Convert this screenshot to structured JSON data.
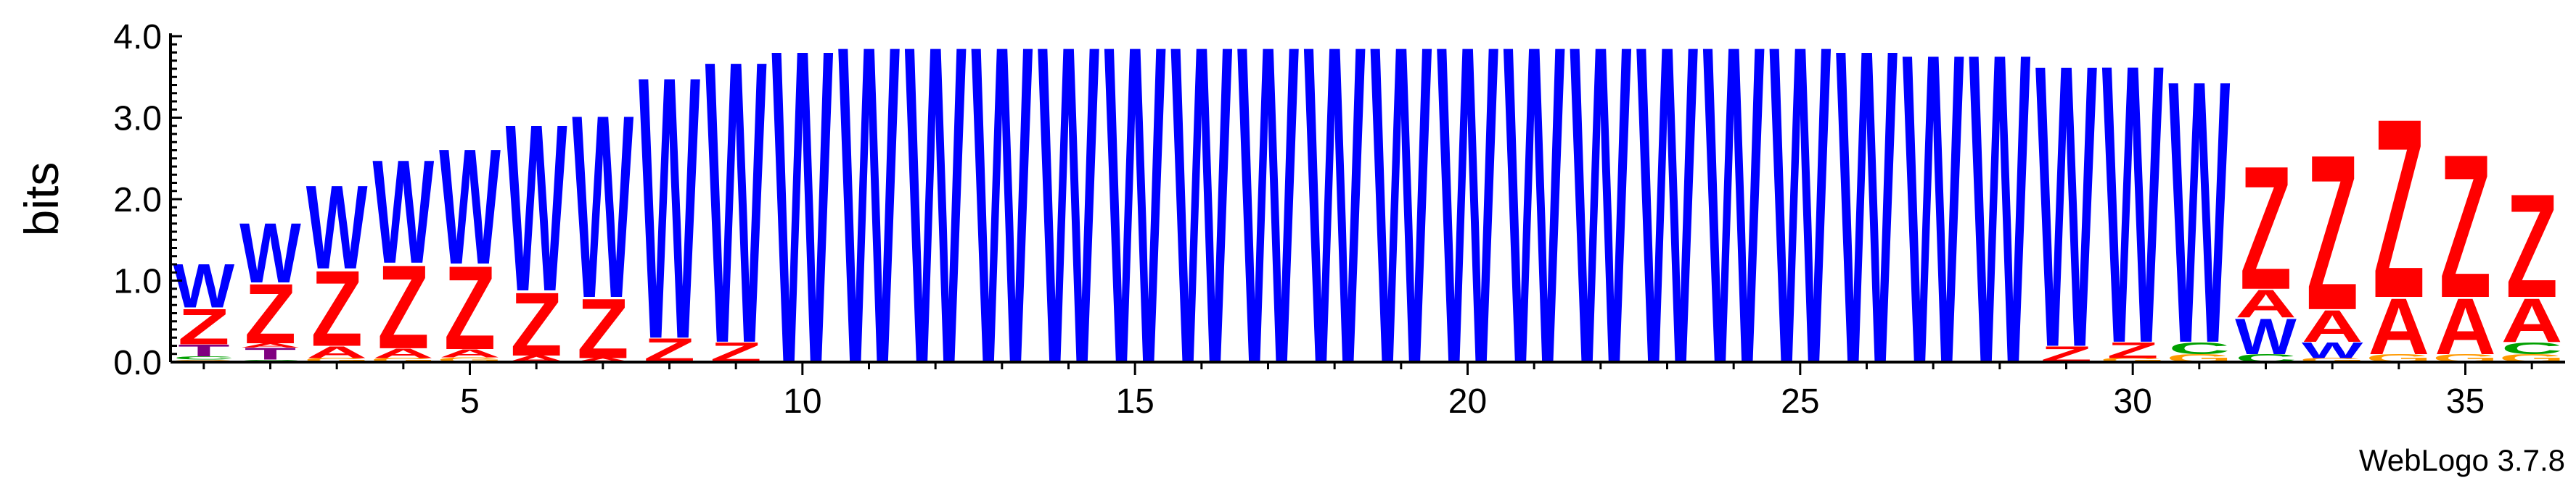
{
  "chart_data": {
    "type": "sequence-logo",
    "title": "",
    "ylabel": "bits",
    "xlabel": "",
    "ylim": [
      0,
      4.0
    ],
    "yticks": [
      "0.0",
      "1.0",
      "2.0",
      "3.0",
      "4.0"
    ],
    "xticks": [
      5,
      10,
      15,
      20,
      25,
      30,
      35
    ],
    "positions": 36,
    "credit": "WebLogo 3.7.8",
    "colors": {
      "W": "#0000ff",
      "Z": "#ff0000",
      "A": "#ff0000",
      "C": "#00a000",
      "G": "#ff9900",
      "T": "#800080",
      "other": "#bbbbbb"
    },
    "columns": [
      {
        "pos": 1,
        "stack": [
          {
            "l": "G",
            "v": 0.03
          },
          {
            "l": "C",
            "v": 0.04
          },
          {
            "l": "T",
            "v": 0.15
          },
          {
            "l": "Z",
            "v": 0.45
          },
          {
            "l": "W",
            "v": 0.55
          }
        ]
      },
      {
        "pos": 2,
        "stack": [
          {
            "l": "C",
            "v": 0.03
          },
          {
            "l": "T",
            "v": 0.15
          },
          {
            "l": "A",
            "v": 0.05
          },
          {
            "l": "Z",
            "v": 0.75
          },
          {
            "l": "W",
            "v": 0.75
          }
        ]
      },
      {
        "pos": 3,
        "stack": [
          {
            "l": "G",
            "v": 0.05
          },
          {
            "l": "A",
            "v": 0.15
          },
          {
            "l": "Z",
            "v": 0.95
          },
          {
            "l": "W",
            "v": 1.05
          }
        ]
      },
      {
        "pos": 4,
        "stack": [
          {
            "l": "G",
            "v": 0.05
          },
          {
            "l": "A",
            "v": 0.12
          },
          {
            "l": "Z",
            "v": 1.05
          },
          {
            "l": "W",
            "v": 1.3
          }
        ]
      },
      {
        "pos": 5,
        "stack": [
          {
            "l": "G",
            "v": 0.06
          },
          {
            "l": "A",
            "v": 0.1
          },
          {
            "l": "Z",
            "v": 1.05
          },
          {
            "l": "W",
            "v": 1.45
          }
        ]
      },
      {
        "pos": 6,
        "stack": [
          {
            "l": "A",
            "v": 0.08
          },
          {
            "l": "Z",
            "v": 0.8
          },
          {
            "l": "W",
            "v": 2.1
          }
        ]
      },
      {
        "pos": 7,
        "stack": [
          {
            "l": "A",
            "v": 0.05
          },
          {
            "l": "Z",
            "v": 0.75
          },
          {
            "l": "W",
            "v": 2.3
          }
        ]
      },
      {
        "pos": 8,
        "stack": [
          {
            "l": "Z",
            "v": 0.3
          },
          {
            "l": "W",
            "v": 3.3
          }
        ]
      },
      {
        "pos": 9,
        "stack": [
          {
            "l": "Z",
            "v": 0.25
          },
          {
            "l": "W",
            "v": 3.55
          }
        ]
      },
      {
        "pos": 10,
        "stack": [
          {
            "l": "W",
            "v": 3.95
          }
        ]
      },
      {
        "pos": 11,
        "stack": [
          {
            "l": "W",
            "v": 4.0
          }
        ]
      },
      {
        "pos": 12,
        "stack": [
          {
            "l": "W",
            "v": 4.0
          }
        ]
      },
      {
        "pos": 13,
        "stack": [
          {
            "l": "W",
            "v": 4.0
          }
        ]
      },
      {
        "pos": 14,
        "stack": [
          {
            "l": "W",
            "v": 4.0
          }
        ]
      },
      {
        "pos": 15,
        "stack": [
          {
            "l": "W",
            "v": 4.0
          }
        ]
      },
      {
        "pos": 16,
        "stack": [
          {
            "l": "W",
            "v": 4.0
          }
        ]
      },
      {
        "pos": 17,
        "stack": [
          {
            "l": "W",
            "v": 4.0
          }
        ]
      },
      {
        "pos": 18,
        "stack": [
          {
            "l": "W",
            "v": 4.0
          }
        ]
      },
      {
        "pos": 19,
        "stack": [
          {
            "l": "W",
            "v": 4.0
          }
        ]
      },
      {
        "pos": 20,
        "stack": [
          {
            "l": "W",
            "v": 4.0
          }
        ]
      },
      {
        "pos": 21,
        "stack": [
          {
            "l": "W",
            "v": 4.0
          }
        ]
      },
      {
        "pos": 22,
        "stack": [
          {
            "l": "W",
            "v": 4.0
          }
        ]
      },
      {
        "pos": 23,
        "stack": [
          {
            "l": "W",
            "v": 4.0
          }
        ]
      },
      {
        "pos": 24,
        "stack": [
          {
            "l": "W",
            "v": 4.0
          }
        ]
      },
      {
        "pos": 25,
        "stack": [
          {
            "l": "W",
            "v": 4.0
          }
        ]
      },
      {
        "pos": 26,
        "stack": [
          {
            "l": "W",
            "v": 3.95
          }
        ]
      },
      {
        "pos": 27,
        "stack": [
          {
            "l": "W",
            "v": 3.9
          }
        ]
      },
      {
        "pos": 28,
        "stack": [
          {
            "l": "W",
            "v": 3.9
          }
        ]
      },
      {
        "pos": 29,
        "stack": [
          {
            "l": "Z",
            "v": 0.2
          },
          {
            "l": "W",
            "v": 3.55
          }
        ]
      },
      {
        "pos": 30,
        "stack": [
          {
            "l": "G",
            "v": 0.05
          },
          {
            "l": "Z",
            "v": 0.2
          },
          {
            "l": "W",
            "v": 3.5
          }
        ]
      },
      {
        "pos": 31,
        "stack": [
          {
            "l": "G",
            "v": 0.1
          },
          {
            "l": "C",
            "v": 0.15
          },
          {
            "l": "W",
            "v": 3.3
          }
        ]
      },
      {
        "pos": 32,
        "stack": [
          {
            "l": "C",
            "v": 0.1
          },
          {
            "l": "W",
            "v": 0.45
          },
          {
            "l": "A",
            "v": 0.35
          },
          {
            "l": "Z",
            "v": 1.55
          }
        ]
      },
      {
        "pos": 33,
        "stack": [
          {
            "l": "G",
            "v": 0.05
          },
          {
            "l": "W",
            "v": 0.2
          },
          {
            "l": "A",
            "v": 0.4
          },
          {
            "l": "Z",
            "v": 1.95
          }
        ]
      },
      {
        "pos": 34,
        "stack": [
          {
            "l": "G",
            "v": 0.1
          },
          {
            "l": "A",
            "v": 0.7
          },
          {
            "l": "Z",
            "v": 2.25
          }
        ]
      },
      {
        "pos": 35,
        "stack": [
          {
            "l": "G",
            "v": 0.1
          },
          {
            "l": "A",
            "v": 0.7
          },
          {
            "l": "Z",
            "v": 1.8
          }
        ]
      },
      {
        "pos": 36,
        "stack": [
          {
            "l": "G",
            "v": 0.1
          },
          {
            "l": "C",
            "v": 0.15
          },
          {
            "l": "A",
            "v": 0.55
          },
          {
            "l": "Z",
            "v": 1.3
          }
        ]
      }
    ]
  }
}
